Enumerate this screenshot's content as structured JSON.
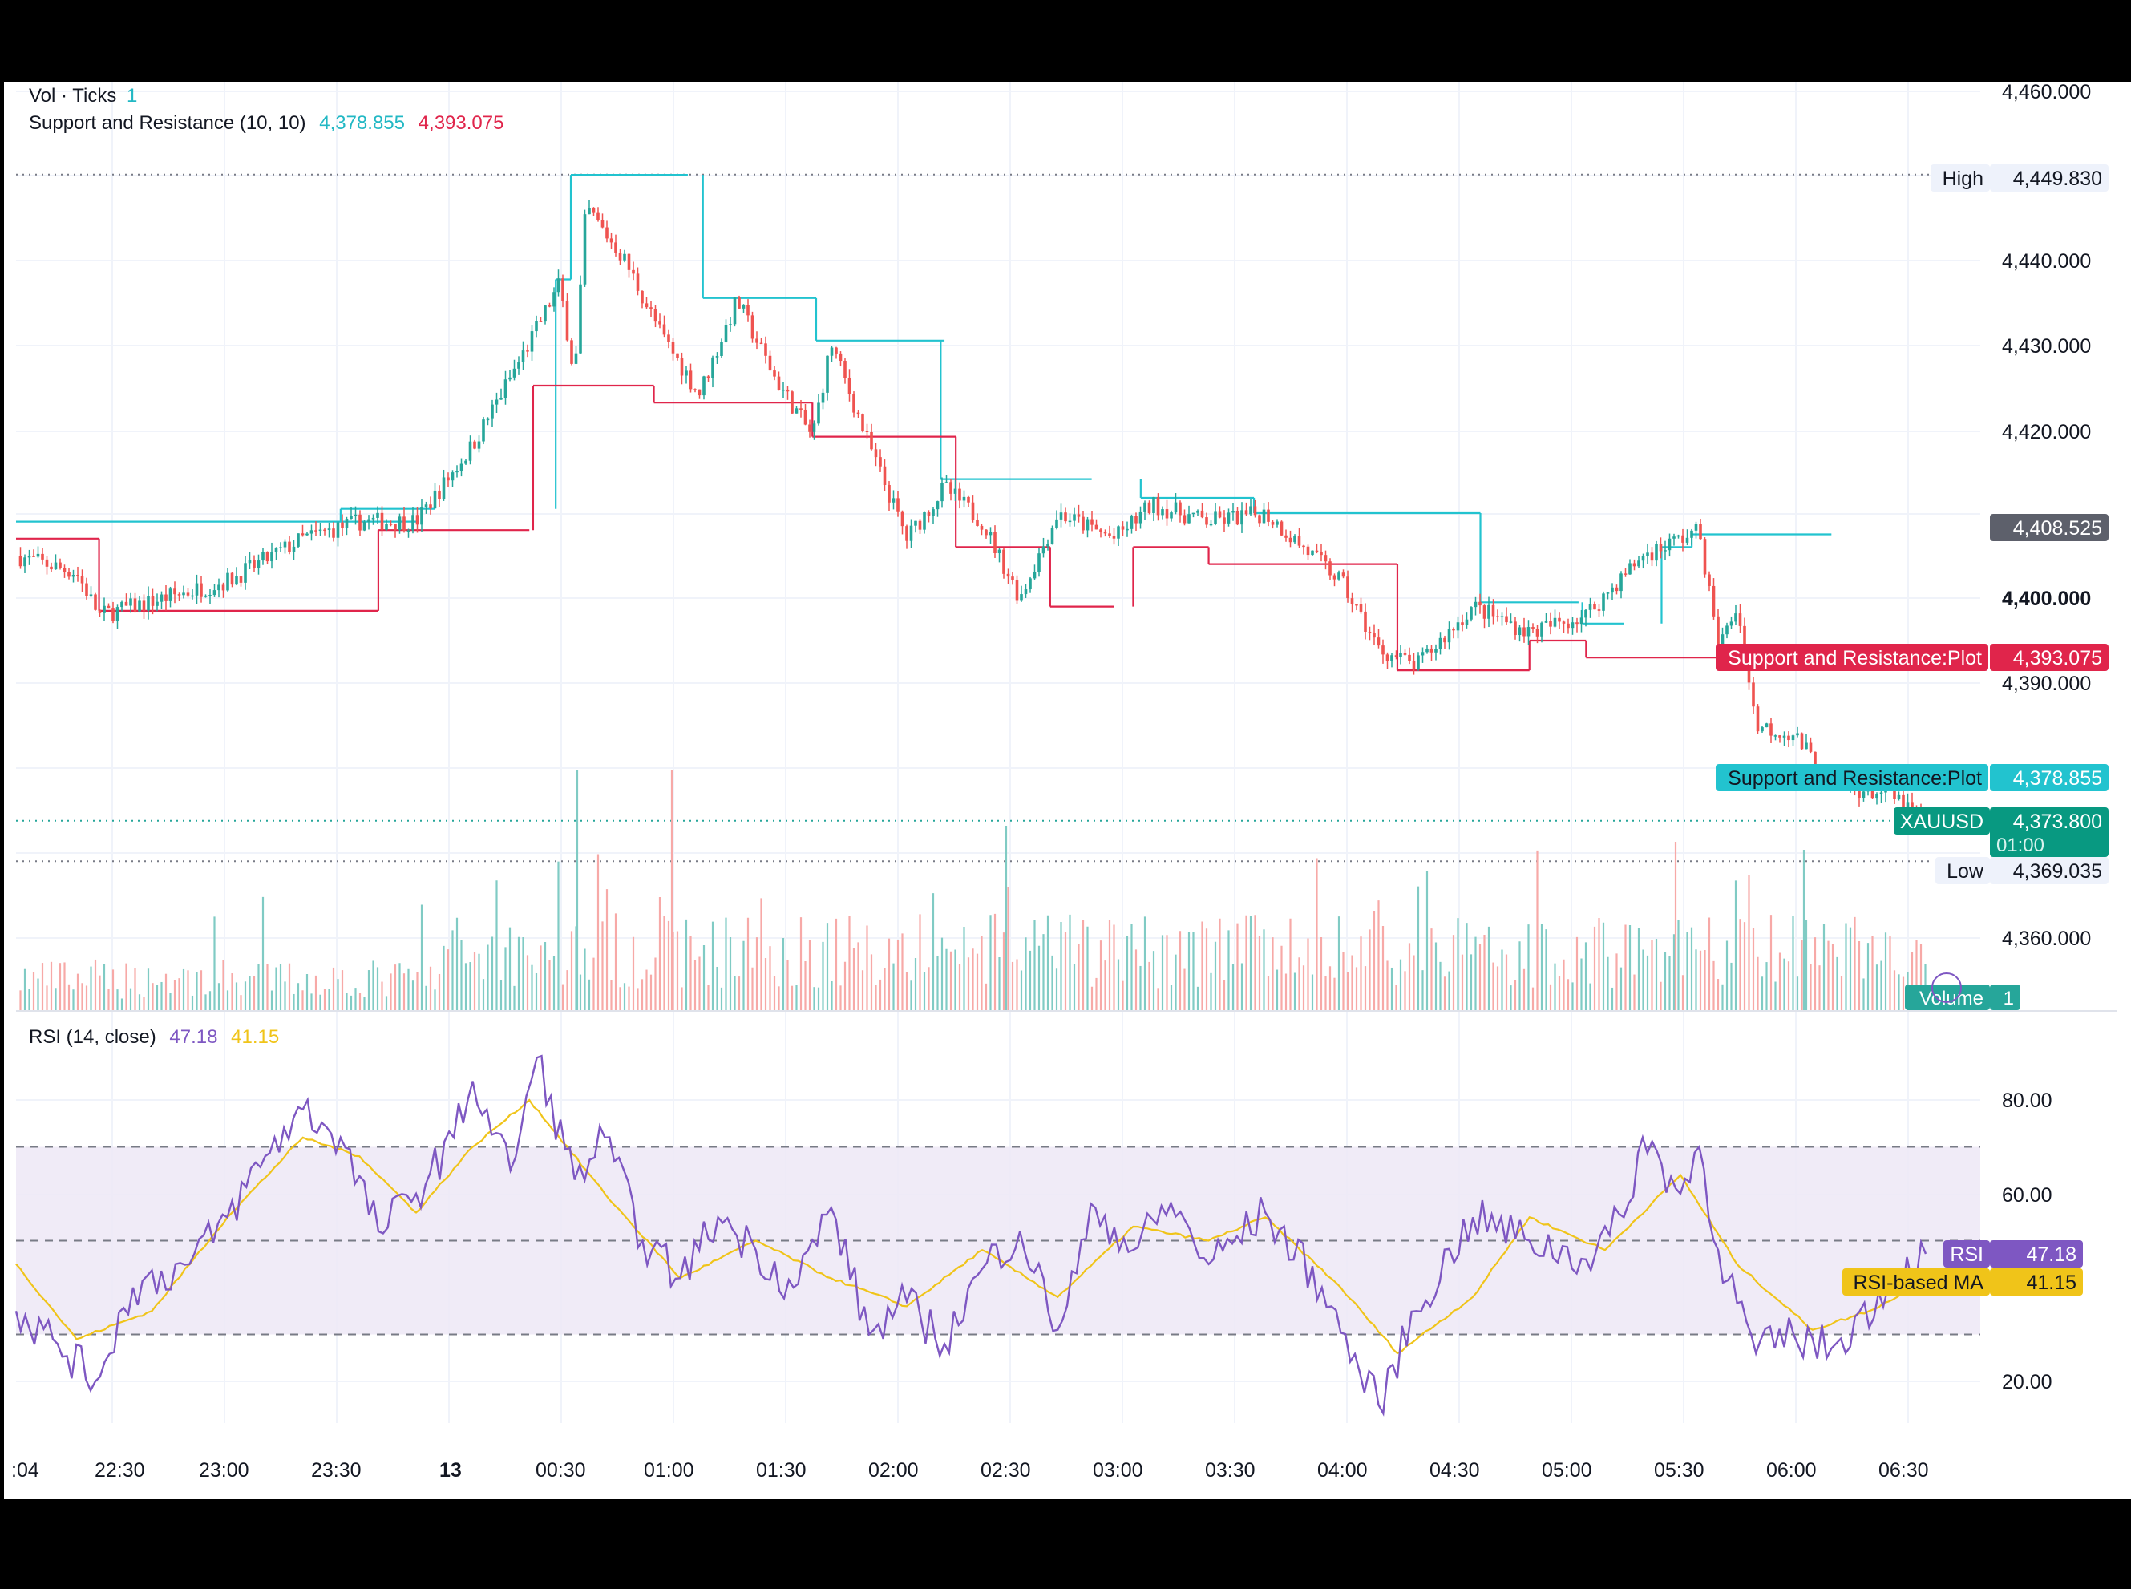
{
  "legend": {
    "vol_title": "Vol · Ticks",
    "vol_value": "1",
    "sr_title": "Support and Resistance (10, 10)",
    "sr_support": "4,378.855",
    "sr_resistance": "4,393.075",
    "rsi_title": "RSI (14, close)",
    "rsi_value": "47.18",
    "rsi_ma_value": "41.15"
  },
  "badges": {
    "high_label": "High",
    "high_value": "4,449.830",
    "low_label": "Low",
    "low_value": "4,369.035",
    "current_value": "4,408.525",
    "resistance_label": "Support and Resistance:Plot",
    "resistance_value": "4,393.075",
    "support_label": "Support and Resistance:Plot",
    "support_value": "4,378.855",
    "symbol_label": "XAUUSD",
    "symbol_value": "4,373.800",
    "symbol_countdown": "01:00",
    "volume_label": "Volume",
    "volume_value": "1",
    "rsi_label": "RSI",
    "rsi_value": "47.18",
    "rsi_ma_label": "RSI-based MA",
    "rsi_ma_value": "41.15"
  },
  "colors": {
    "up": "#26a69a",
    "down": "#ef5350",
    "support": "#22c3cf",
    "resistance": "#e0254b",
    "rsi": "#7e57c2",
    "rsi_ma": "#f0c419",
    "band": "#ede7f6"
  },
  "chart_data": [
    {
      "type": "candlestick",
      "symbol": "XAUUSD",
      "price_axis_ticks": [
        "4,460.000",
        "4,440.000",
        "4,430.000",
        "4,420.000",
        "4,400.000",
        "4,390.000",
        "4,360.000"
      ],
      "price_axis_bold_tick": "4,400.000",
      "ylim": [
        4353,
        4463
      ],
      "time_ticks": [
        ":04",
        "22:30",
        "23:00",
        "23:30",
        "13",
        "00:30",
        "01:00",
        "01:30",
        "02:00",
        "02:30",
        "03:00",
        "03:30",
        "04:00",
        "04:30",
        "05:00",
        "05:30",
        "06:00",
        "06:30"
      ],
      "close_path": [
        {
          "t": "22:04",
          "p": 4405
        },
        {
          "t": "22:20",
          "p": 4403
        },
        {
          "t": "22:26",
          "p": 4398
        },
        {
          "t": "22:35",
          "p": 4399
        },
        {
          "t": "23:00",
          "p": 4402
        },
        {
          "t": "23:20",
          "p": 4407
        },
        {
          "t": "23:35",
          "p": 4409
        },
        {
          "t": "23:50",
          "p": 4409
        },
        {
          "t": "00:05",
          "p": 4418
        },
        {
          "t": "00:20",
          "p": 4430
        },
        {
          "t": "00:28",
          "p": 4437
        },
        {
          "t": "00:32",
          "p": 4426
        },
        {
          "t": "00:35",
          "p": 4446
        },
        {
          "t": "00:45",
          "p": 4440
        },
        {
          "t": "00:55",
          "p": 4431
        },
        {
          "t": "01:05",
          "p": 4424
        },
        {
          "t": "01:15",
          "p": 4435
        },
        {
          "t": "01:25",
          "p": 4426
        },
        {
          "t": "01:35",
          "p": 4419
        },
        {
          "t": "01:40",
          "p": 4430
        },
        {
          "t": "01:50",
          "p": 4418
        },
        {
          "t": "02:00",
          "p": 4407
        },
        {
          "t": "02:10",
          "p": 4413
        },
        {
          "t": "02:20",
          "p": 4409
        },
        {
          "t": "02:30",
          "p": 4400
        },
        {
          "t": "02:40",
          "p": 4410
        },
        {
          "t": "02:55",
          "p": 4407
        },
        {
          "t": "03:05",
          "p": 4411
        },
        {
          "t": "03:20",
          "p": 4409
        },
        {
          "t": "03:35",
          "p": 4410
        },
        {
          "t": "03:55",
          "p": 4402
        },
        {
          "t": "04:05",
          "p": 4394
        },
        {
          "t": "04:15",
          "p": 4392
        },
        {
          "t": "04:30",
          "p": 4399
        },
        {
          "t": "04:45",
          "p": 4396
        },
        {
          "t": "05:00",
          "p": 4398
        },
        {
          "t": "05:15",
          "p": 4405
        },
        {
          "t": "05:30",
          "p": 4408
        },
        {
          "t": "05:35",
          "p": 4394
        },
        {
          "t": "05:40",
          "p": 4399
        },
        {
          "t": "05:45",
          "p": 4385
        },
        {
          "t": "05:55",
          "p": 4384
        },
        {
          "t": "06:05",
          "p": 4378
        },
        {
          "t": "06:20",
          "p": 4377
        },
        {
          "t": "06:30",
          "p": 4373.8
        }
      ],
      "high": 4449.83,
      "low": 4369.035,
      "last": 4373.8
    },
    {
      "type": "line",
      "title": "Support and Resistance (10, 10)",
      "series": [
        {
          "name": "support",
          "segments": [
            {
              "from": "22:04",
              "to": "23:50",
              "value": 4409
            },
            {
              "from": "23:30",
              "to": "23:55",
              "value": 4410.5
            },
            {
              "from": "00:27",
              "to": "00:31",
              "value": 4437.5
            },
            {
              "from": "00:31",
              "to": "01:02",
              "value": 4449.8
            },
            {
              "from": "01:06",
              "to": "01:36",
              "value": 4435.3
            },
            {
              "from": "01:36",
              "to": "02:10",
              "value": 4430.3
            },
            {
              "from": "02:09",
              "to": "02:49",
              "value": 4414
            },
            {
              "from": "03:02",
              "to": "03:32",
              "value": 4411.8
            },
            {
              "from": "03:32",
              "to": "04:32",
              "value": 4410
            },
            {
              "from": "04:32",
              "to": "04:58",
              "value": 4399.5
            },
            {
              "from": "04:59",
              "to": "05:10",
              "value": 4397
            },
            {
              "from": "05:20",
              "to": "05:28",
              "value": 4406
            },
            {
              "from": "05:28",
              "to": "06:05",
              "value": 4407.5
            }
          ]
        },
        {
          "name": "resistance",
          "segments": [
            {
              "from": "22:04",
              "to": "22:26",
              "value": 4407
            },
            {
              "from": "22:26",
              "to": "23:40",
              "value": 4398.5
            },
            {
              "from": "23:40",
              "to": "00:20",
              "value": 4408
            },
            {
              "from": "00:21",
              "to": "00:53",
              "value": 4425
            },
            {
              "from": "00:53",
              "to": "01:35",
              "value": 4423
            },
            {
              "from": "01:35",
              "to": "02:13",
              "value": 4419
            },
            {
              "from": "02:13",
              "to": "02:38",
              "value": 4406
            },
            {
              "from": "02:38",
              "to": "02:55",
              "value": 4399
            },
            {
              "from": "03:00",
              "to": "03:20",
              "value": 4406
            },
            {
              "from": "03:20",
              "to": "04:10",
              "value": 4404
            },
            {
              "from": "04:10",
              "to": "04:45",
              "value": 4391.5
            },
            {
              "from": "04:45",
              "to": "05:00",
              "value": 4395
            },
            {
              "from": "05:00",
              "to": "05:45",
              "value": 4393
            }
          ]
        }
      ]
    },
    {
      "type": "bar",
      "title": "Vol · Ticks",
      "note": "tick volume histogram, green/red by candle direction"
    },
    {
      "type": "line",
      "title": "RSI (14, close)",
      "rsi_axis_ticks": [
        "80.00",
        "60.00",
        "20.00"
      ],
      "ylim": [
        10,
        90
      ],
      "band": [
        30,
        70
      ],
      "mid_line": 50,
      "series": [
        {
          "name": "RSI",
          "values": [
            {
              "t": "22:04",
              "v": 35
            },
            {
              "t": "22:15",
              "v": 28
            },
            {
              "t": "22:25",
              "v": 20
            },
            {
              "t": "22:35",
              "v": 40
            },
            {
              "t": "22:50",
              "v": 45
            },
            {
              "t": "23:00",
              "v": 55
            },
            {
              "t": "23:10",
              "v": 68
            },
            {
              "t": "23:20",
              "v": 78
            },
            {
              "t": "23:30",
              "v": 72
            },
            {
              "t": "23:40",
              "v": 52
            },
            {
              "t": "23:50",
              "v": 60
            },
            {
              "t": "00:00",
              "v": 72
            },
            {
              "t": "00:05",
              "v": 84
            },
            {
              "t": "00:15",
              "v": 65
            },
            {
              "t": "00:22",
              "v": 89
            },
            {
              "t": "00:32",
              "v": 63
            },
            {
              "t": "00:40",
              "v": 72
            },
            {
              "t": "00:50",
              "v": 50
            },
            {
              "t": "01:00",
              "v": 42
            },
            {
              "t": "01:10",
              "v": 55
            },
            {
              "t": "01:20",
              "v": 48
            },
            {
              "t": "01:30",
              "v": 40
            },
            {
              "t": "01:40",
              "v": 57
            },
            {
              "t": "01:50",
              "v": 30
            },
            {
              "t": "02:00",
              "v": 37
            },
            {
              "t": "02:10",
              "v": 28
            },
            {
              "t": "02:20",
              "v": 44
            },
            {
              "t": "02:30",
              "v": 52
            },
            {
              "t": "02:40",
              "v": 31
            },
            {
              "t": "02:50",
              "v": 57
            },
            {
              "t": "03:00",
              "v": 48
            },
            {
              "t": "03:10",
              "v": 58
            },
            {
              "t": "03:20",
              "v": 45
            },
            {
              "t": "03:35",
              "v": 56
            },
            {
              "t": "03:50",
              "v": 40
            },
            {
              "t": "04:00",
              "v": 22
            },
            {
              "t": "04:05",
              "v": 15
            },
            {
              "t": "04:15",
              "v": 35
            },
            {
              "t": "04:30",
              "v": 55
            },
            {
              "t": "04:45",
              "v": 50
            },
            {
              "t": "05:00",
              "v": 46
            },
            {
              "t": "05:10",
              "v": 55
            },
            {
              "t": "05:15",
              "v": 72
            },
            {
              "t": "05:25",
              "v": 60
            },
            {
              "t": "05:30",
              "v": 70
            },
            {
              "t": "05:35",
              "v": 48
            },
            {
              "t": "05:45",
              "v": 26
            },
            {
              "t": "05:55",
              "v": 30
            },
            {
              "t": "06:05",
              "v": 27
            },
            {
              "t": "06:20",
              "v": 40
            },
            {
              "t": "06:30",
              "v": 47.18
            }
          ]
        },
        {
          "name": "RSI-based MA",
          "values": [
            {
              "t": "22:04",
              "v": 45
            },
            {
              "t": "22:20",
              "v": 29
            },
            {
              "t": "22:40",
              "v": 35
            },
            {
              "t": "23:00",
              "v": 55
            },
            {
              "t": "23:20",
              "v": 72
            },
            {
              "t": "23:35",
              "v": 68
            },
            {
              "t": "23:50",
              "v": 56
            },
            {
              "t": "00:05",
              "v": 70
            },
            {
              "t": "00:20",
              "v": 80
            },
            {
              "t": "00:40",
              "v": 60
            },
            {
              "t": "01:00",
              "v": 42
            },
            {
              "t": "01:20",
              "v": 50
            },
            {
              "t": "01:40",
              "v": 42
            },
            {
              "t": "02:00",
              "v": 36
            },
            {
              "t": "02:20",
              "v": 48
            },
            {
              "t": "02:40",
              "v": 38
            },
            {
              "t": "03:00",
              "v": 53
            },
            {
              "t": "03:20",
              "v": 50
            },
            {
              "t": "03:35",
              "v": 55
            },
            {
              "t": "03:55",
              "v": 40
            },
            {
              "t": "04:10",
              "v": 26
            },
            {
              "t": "04:30",
              "v": 38
            },
            {
              "t": "04:45",
              "v": 55
            },
            {
              "t": "05:05",
              "v": 48
            },
            {
              "t": "05:25",
              "v": 64
            },
            {
              "t": "05:40",
              "v": 45
            },
            {
              "t": "06:00",
              "v": 31
            },
            {
              "t": "06:15",
              "v": 35
            },
            {
              "t": "06:30",
              "v": 41.15
            }
          ]
        }
      ]
    }
  ]
}
